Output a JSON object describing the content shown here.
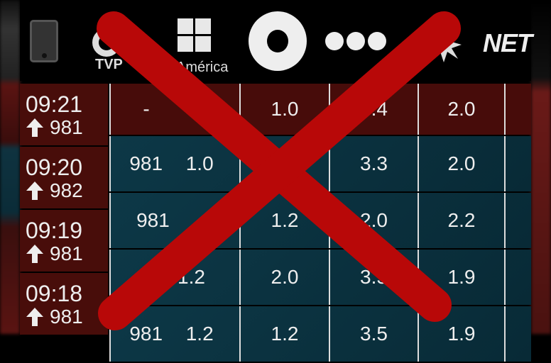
{
  "header": {
    "channels": [
      {
        "icon": "phone-icon"
      },
      {
        "name": "TVP",
        "icon": "tvp-logo"
      },
      {
        "name": "América",
        "icon": "america-logo"
      },
      {
        "icon": "ring-logo"
      },
      {
        "icon": "three-dots-logo"
      },
      {
        "icon": "sun-logo"
      },
      {
        "name": "NET",
        "icon": "net-logo"
      }
    ]
  },
  "times": [
    {
      "time": "09:21",
      "value": "981",
      "trend": "up"
    },
    {
      "time": "09:20",
      "value": "982",
      "trend": "up"
    },
    {
      "time": "09:19",
      "value": "981",
      "trend": "up"
    },
    {
      "time": "09:18",
      "value": "981",
      "trend": "up"
    }
  ],
  "rows": [
    {
      "a": "-",
      "b": "",
      "c": "1.0",
      "d": "3.4",
      "e": "2.0"
    },
    {
      "a": "981",
      "b": "1.0",
      "c": "",
      "d": "3.3",
      "e": "2.0"
    },
    {
      "a": "981",
      "b": "",
      "c": "1.2",
      "d": "2.0",
      "e": "2.2"
    },
    {
      "a": "",
      "b": "1.2",
      "c": "2.0",
      "d": "3.5",
      "e": "1.9"
    },
    {
      "a": "981",
      "b": "1.2",
      "c": "1.2",
      "d": "3.5",
      "e": "1.9"
    }
  ],
  "colors": {
    "current_row": "#470c0a",
    "row": "#0b3340",
    "cross": "#b80808"
  }
}
